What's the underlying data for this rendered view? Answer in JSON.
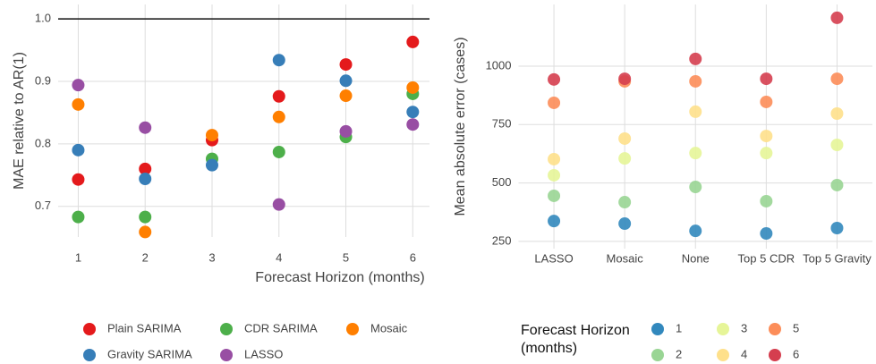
{
  "chart_data": [
    {
      "type": "scatter",
      "xlabel": "Forecast Horizon (months)",
      "ylabel": "MAE relative to AR(1)",
      "x": [
        1,
        2,
        3,
        4,
        5,
        6
      ],
      "xlim": [
        0.7,
        6.25
      ],
      "xticks": [
        1,
        2,
        3,
        4,
        5,
        6
      ],
      "ylim": [
        0.651,
        1.023
      ],
      "yticks": [
        0.7,
        0.8,
        0.9,
        {
          "value": 1.0,
          "label": "1.0"
        }
      ],
      "hline": 1.0,
      "grid": true,
      "series": [
        {
          "name": "Plain SARIMA",
          "color": "#e41a1c",
          "values": [
            0.743,
            0.76,
            0.806,
            0.876,
            0.927,
            0.963
          ]
        },
        {
          "name": "CDR SARIMA",
          "color": "#4daf4a",
          "values": [
            0.683,
            0.683,
            0.776,
            0.787,
            0.811,
            0.88
          ]
        },
        {
          "name": "Mosaic",
          "color": "#ff7f00",
          "values": [
            0.863,
            0.659,
            0.814,
            0.843,
            0.877,
            0.89
          ]
        },
        {
          "name": "Gravity SARIMA",
          "color": "#377eb8",
          "values": [
            0.79,
            0.744,
            0.766,
            0.934,
            0.901,
            0.851
          ]
        },
        {
          "name": "LASSO",
          "color": "#984ea3",
          "values": [
            0.894,
            0.826,
            null,
            0.703,
            0.82,
            0.831
          ]
        }
      ]
    },
    {
      "type": "dot",
      "ylabel": "Mean absolute error (cases)",
      "legend_title": "Forecast Horizon (months)",
      "categories": [
        "LASSO",
        "Mosaic",
        "None",
        "Top 5 CDR",
        "Top 5 Gravity"
      ],
      "ylim": [
        219,
        1264
      ],
      "yticks": [
        250,
        500,
        750,
        1000
      ],
      "grid": true,
      "series": [
        {
          "name": "1",
          "color": "#3288bd",
          "values": [
            337,
            326,
            295,
            284,
            307
          ]
        },
        {
          "name": "2",
          "color": "#99d594",
          "values": [
            445,
            418,
            483,
            422,
            491
          ]
        },
        {
          "name": "3",
          "color": "#e6f598",
          "values": [
            533,
            605,
            628,
            628,
            663
          ]
        },
        {
          "name": "4",
          "color": "#fee08b",
          "values": [
            602,
            690,
            805,
            701,
            797
          ]
        },
        {
          "name": "5",
          "color": "#fc8d59",
          "values": [
            843,
            935,
            935,
            847,
            946
          ]
        },
        {
          "name": "6",
          "color": "#d53e4f",
          "values": [
            943,
            946,
            1031,
            946,
            1207
          ]
        }
      ]
    }
  ]
}
